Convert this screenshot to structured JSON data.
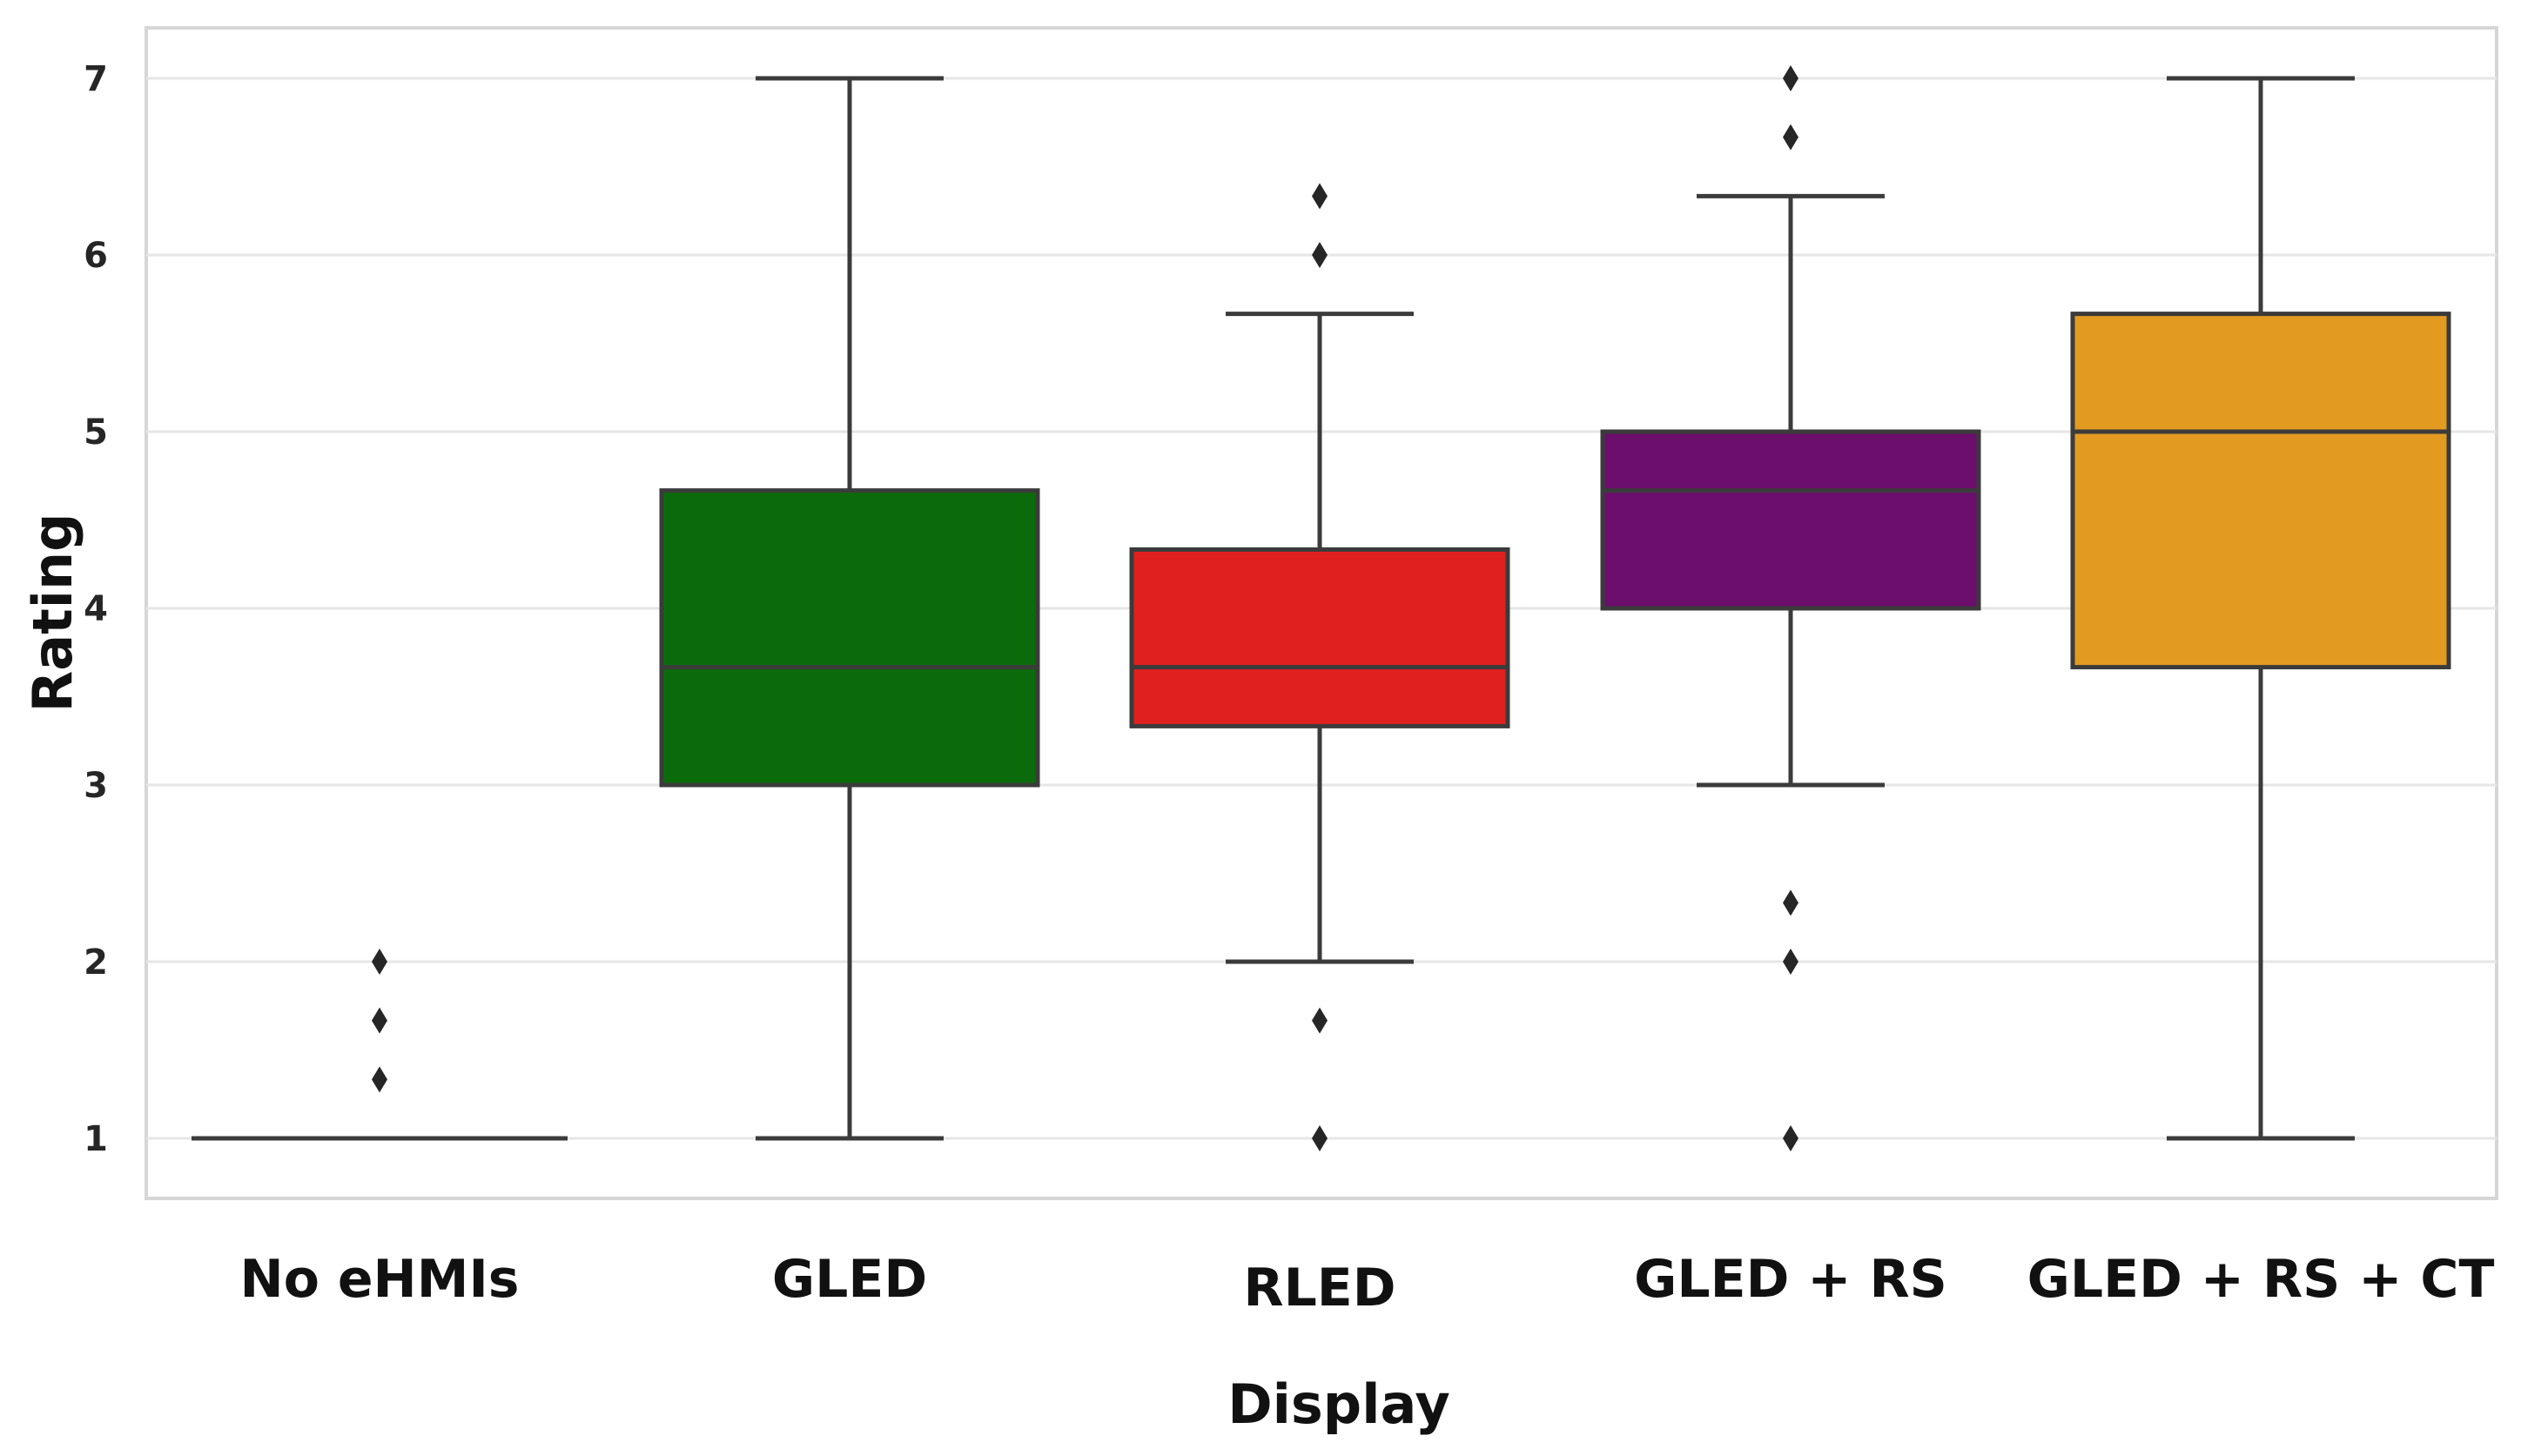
{
  "chart_data": {
    "type": "box",
    "title": "",
    "xlabel": "Display",
    "ylabel": "Rating",
    "ylim": [
      0.6,
      7.3
    ],
    "yticks": [
      1,
      2,
      3,
      4,
      5,
      6,
      7
    ],
    "grid": true,
    "categories": [
      "No eHMIs",
      "GLED",
      "RLED",
      "GLED + RS",
      "GLED + RS + CT"
    ],
    "series": [
      {
        "name": "No eHMIs",
        "color": "#1a1a1a",
        "whisker_low": 1,
        "q1": 1,
        "median": 1,
        "q3": 1,
        "whisker_high": 1,
        "outliers": [
          1.333,
          1.667,
          2
        ]
      },
      {
        "name": "GLED",
        "color": "#0b6b0b",
        "whisker_low": 1,
        "q1": 3,
        "median": 3.667,
        "q3": 4.667,
        "whisker_high": 7,
        "outliers": []
      },
      {
        "name": "RLED",
        "color": "#e0201f",
        "whisker_low": 2,
        "q1": 3.333,
        "median": 3.667,
        "q3": 4.333,
        "whisker_high": 5.667,
        "outliers": [
          1,
          1.667,
          6,
          6.333
        ]
      },
      {
        "name": "GLED + RS",
        "color": "#6c0e6c",
        "whisker_low": 3,
        "q1": 4,
        "median": 4.667,
        "q3": 5,
        "whisker_high": 6.333,
        "outliers": [
          1,
          2,
          2.333,
          6.667,
          7
        ]
      },
      {
        "name": "GLED + RS + CT",
        "color": "#e39a21",
        "whisker_low": 1,
        "q1": 3.667,
        "median": 5,
        "q3": 5.667,
        "whisker_high": 7,
        "outliers": []
      }
    ]
  }
}
